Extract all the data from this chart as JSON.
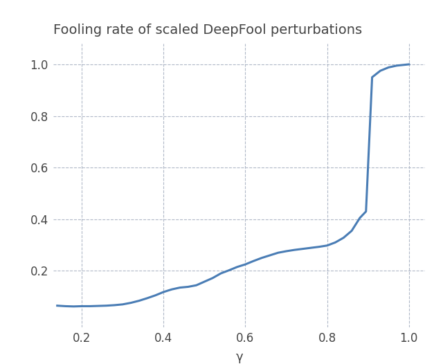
{
  "title": "Fooling rate of scaled DeepFool perturbations",
  "xlabel": "γ",
  "ylabel": "",
  "xlim": [
    0.13,
    1.04
  ],
  "ylim": [
    -0.02,
    1.08
  ],
  "xticks": [
    0.2,
    0.4,
    0.6,
    0.8,
    1.0
  ],
  "yticks": [
    0.2,
    0.4,
    0.6,
    0.8,
    1.0
  ],
  "line_color": "#4a7db5",
  "background_color": "#ffffff",
  "grid_color": "#b0b8c8",
  "top_bar_color": "#1a1a1a",
  "x": [
    0.14,
    0.16,
    0.18,
    0.2,
    0.22,
    0.24,
    0.26,
    0.28,
    0.3,
    0.32,
    0.34,
    0.36,
    0.38,
    0.4,
    0.42,
    0.44,
    0.46,
    0.48,
    0.5,
    0.52,
    0.54,
    0.56,
    0.58,
    0.6,
    0.62,
    0.64,
    0.66,
    0.68,
    0.7,
    0.72,
    0.74,
    0.76,
    0.78,
    0.8,
    0.82,
    0.84,
    0.86,
    0.88,
    0.895,
    0.91,
    0.93,
    0.95,
    0.97,
    1.0
  ],
  "y": [
    0.065,
    0.063,
    0.062,
    0.063,
    0.063,
    0.064,
    0.065,
    0.067,
    0.07,
    0.076,
    0.084,
    0.094,
    0.105,
    0.118,
    0.128,
    0.135,
    0.138,
    0.144,
    0.158,
    0.172,
    0.19,
    0.202,
    0.215,
    0.225,
    0.238,
    0.25,
    0.26,
    0.27,
    0.276,
    0.281,
    0.285,
    0.289,
    0.293,
    0.298,
    0.31,
    0.328,
    0.355,
    0.405,
    0.43,
    0.95,
    0.975,
    0.988,
    0.995,
    1.0
  ],
  "title_fontsize": 14,
  "label_fontsize": 13,
  "tick_fontsize": 12,
  "line_width": 2.2,
  "top_bar_height": 0.04
}
